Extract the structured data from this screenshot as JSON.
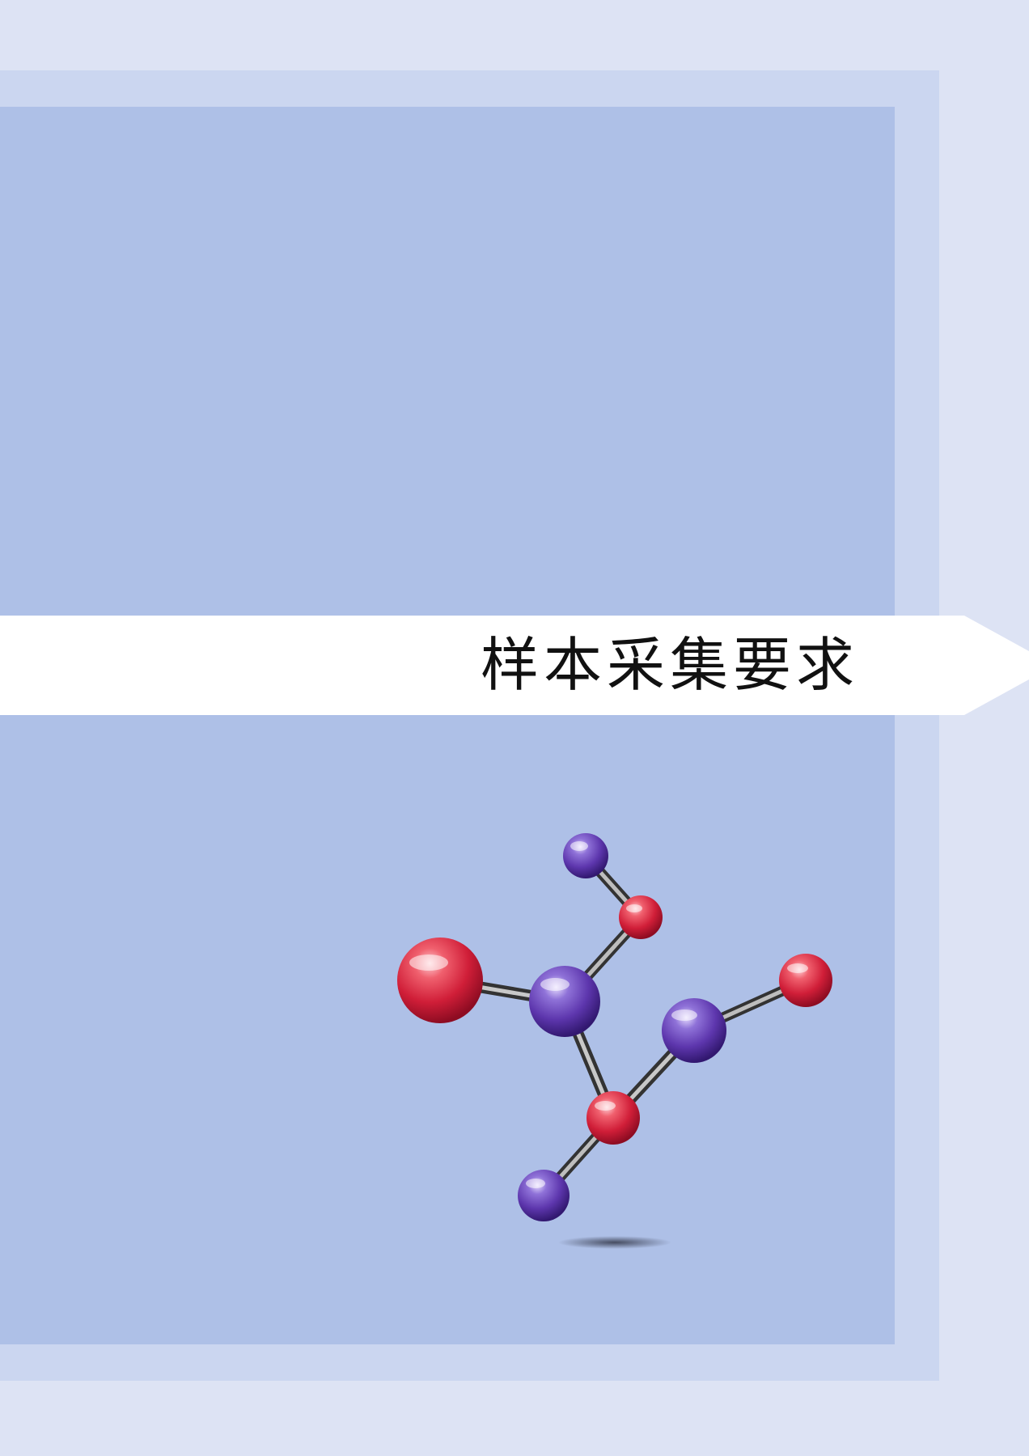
{
  "page": {
    "title": "样本采集要求"
  },
  "colors": {
    "outer_background": "#dde3f4",
    "middle_frame": "#cbd6f0",
    "inner_panel": "#aec0e7",
    "banner": "#ffffff",
    "atom_red": "#d8283f",
    "atom_purple": "#6a45b8"
  },
  "illustration": {
    "icon": "molecule-model-icon"
  }
}
